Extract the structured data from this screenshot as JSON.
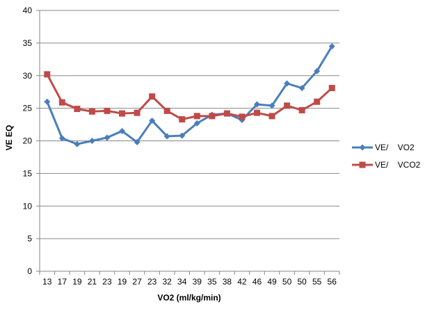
{
  "chart_data": {
    "type": "line",
    "title": "",
    "xlabel": "VO2 (ml/kg/min)",
    "ylabel": "VE EQ",
    "categories": [
      "13",
      "17",
      "19",
      "21",
      "23",
      "19",
      "27",
      "23",
      "32",
      "34",
      "39",
      "35",
      "38",
      "42",
      "46",
      "49",
      "50",
      "50",
      "55",
      "56"
    ],
    "ylim": [
      0,
      40
    ],
    "yticks": [
      0,
      5,
      10,
      15,
      20,
      25,
      30,
      35,
      40
    ],
    "grid": true,
    "legend_position": "right",
    "series": [
      {
        "name": "VE/    VO2",
        "color": "#4a7ebb",
        "marker": "diamond",
        "values": [
          26.0,
          20.4,
          19.5,
          20.0,
          20.5,
          21.5,
          19.8,
          23.1,
          20.7,
          20.8,
          22.7,
          24.0,
          24.2,
          23.2,
          25.6,
          25.4,
          28.8,
          28.1,
          30.7,
          34.5
        ]
      },
      {
        "name": "VE/    VCO2",
        "color": "#be4b48",
        "marker": "square",
        "values": [
          30.2,
          25.9,
          24.9,
          24.5,
          24.6,
          24.2,
          24.3,
          26.8,
          24.6,
          23.3,
          23.8,
          23.8,
          24.2,
          23.7,
          24.3,
          23.8,
          25.4,
          24.7,
          26.0,
          28.1
        ]
      }
    ]
  }
}
